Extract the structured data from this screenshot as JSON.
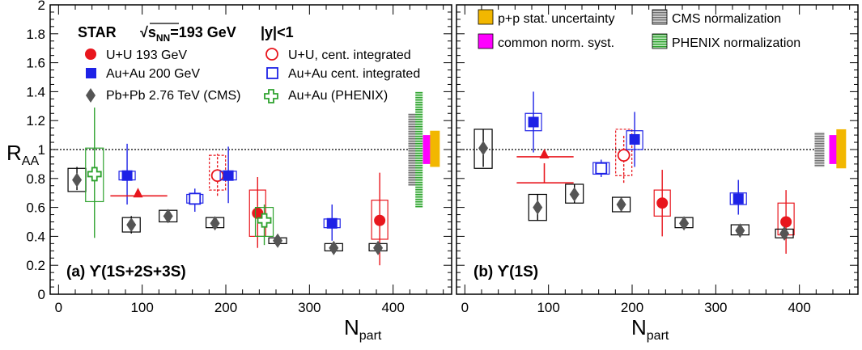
{
  "figure": {
    "y_axis_label": "R",
    "y_axis_label_sub": "AA",
    "x_axis_label": "N",
    "x_axis_label_sub": "part",
    "header_prefix": "STAR",
    "header_energy": "√s",
    "header_energy_sub": "NN",
    "header_energy_value": "=193 GeV",
    "header_rapidity": "|y|<1"
  },
  "colors": {
    "red": "#e8161d",
    "blue": "#1e22e6",
    "gray": "#555555",
    "green": "#2ea22e",
    "pp_stat": "#f2b700",
    "common_norm": "#ff00ff",
    "cms_norm": "#8c8c8c",
    "phenix_norm": "#3db33d"
  },
  "legend_a": [
    {
      "key": "uu",
      "label": "U+U 193 GeV"
    },
    {
      "key": "uu_int",
      "label": "U+U, cent. integrated"
    },
    {
      "key": "auau",
      "label": "Au+Au 200 GeV"
    },
    {
      "key": "auau_int",
      "label": "Au+Au cent. integrated"
    },
    {
      "key": "pbpb",
      "label": "Pb+Pb 2.76 TeV (CMS)"
    },
    {
      "key": "phenix",
      "label": "Au+Au (PHENIX)"
    }
  ],
  "legend_b": [
    {
      "key": "pp_stat",
      "label": "p+p stat. uncertainty"
    },
    {
      "key": "cms_norm",
      "label": "CMS normalization"
    },
    {
      "key": "common_norm",
      "label": "common norm. syst."
    },
    {
      "key": "phenix_norm",
      "label": "PHENIX normalization"
    }
  ],
  "chart_data": [
    {
      "type": "scatter",
      "panel_label": "(a) ϒ(1S+2S+3S)",
      "xlabel": "N_part",
      "ylabel": "R_AA",
      "xlim": [
        -10,
        470
      ],
      "ylim": [
        0,
        2
      ],
      "x_ticks": [
        0,
        100,
        200,
        300,
        400
      ],
      "y_ticks": [
        0,
        0.2,
        0.4,
        0.6,
        0.8,
        1,
        1.2,
        1.4,
        1.6,
        1.8,
        2
      ],
      "reference_line": 1,
      "series": [
        {
          "name": "U+U 193 GeV",
          "key": "uu",
          "points": [
            {
              "x": 238,
              "y": 0.56,
              "yerr": [
                0.32,
                0.81
              ],
              "sys": [
                0.4,
                0.72
              ]
            },
            {
              "x": 384,
              "y": 0.51,
              "yerr": [
                0.2,
                0.84
              ],
              "sys": [
                0.38,
                0.65
              ]
            }
          ]
        },
        {
          "name": "U+U, cent. integrated",
          "key": "uu_int",
          "points": [
            {
              "x": 190,
              "y": 0.82,
              "yerr": [
                0.68,
                0.97
              ],
              "sys": [
                0.72,
                0.96
              ]
            }
          ]
        },
        {
          "name": "Au+Au 200 GeV",
          "key": "auau",
          "points": [
            {
              "x": 82,
              "y": 0.82,
              "yerr": [
                0.62,
                1.04
              ],
              "sys": [
                0.79,
                0.85
              ]
            },
            {
              "x": 203,
              "y": 0.82,
              "yerr": [
                0.63,
                1.02
              ],
              "sys": [
                0.79,
                0.85
              ]
            },
            {
              "x": 327,
              "y": 0.49,
              "yerr": [
                0.37,
                0.62
              ],
              "sys": [
                0.46,
                0.52
              ]
            }
          ]
        },
        {
          "name": "Au+Au cent. integrated",
          "key": "auau_int",
          "points": [
            {
              "x": 163,
              "y": 0.66,
              "yerr": [
                0.57,
                0.73
              ],
              "sys": [
                0.63,
                0.69
              ]
            }
          ]
        },
        {
          "name": "Pb+Pb 2.76 TeV (CMS)",
          "key": "pbpb",
          "points": [
            {
              "x": 22,
              "y": 0.79,
              "yerr": [
                0.72,
                0.88
              ],
              "sys": [
                0.71,
                0.87
              ]
            },
            {
              "x": 87,
              "y": 0.48,
              "yerr": [
                0.42,
                0.54
              ],
              "sys": [
                0.43,
                0.53
              ]
            },
            {
              "x": 131,
              "y": 0.54,
              "yerr": [
                0.5,
                0.58
              ],
              "sys": [
                0.5,
                0.58
              ]
            },
            {
              "x": 187,
              "y": 0.49,
              "yerr": [
                0.45,
                0.53
              ],
              "sys": [
                0.46,
                0.53
              ]
            },
            {
              "x": 262,
              "y": 0.37,
              "yerr": [
                0.34,
                0.4
              ],
              "sys": [
                0.35,
                0.39
              ]
            },
            {
              "x": 329,
              "y": 0.32,
              "yerr": [
                0.29,
                0.35
              ],
              "sys": [
                0.3,
                0.35
              ]
            },
            {
              "x": 382,
              "y": 0.32,
              "yerr": [
                0.29,
                0.35
              ],
              "sys": [
                0.3,
                0.35
              ]
            }
          ]
        },
        {
          "name": "Au+Au (PHENIX)",
          "key": "phenix",
          "points": [
            {
              "x": 43,
              "y": 0.83,
              "yerr": [
                0.39,
                1.29
              ],
              "sys": [
                0.64,
                1.01
              ]
            },
            {
              "x": 246,
              "y": 0.51,
              "yerr": [
                0.34,
                0.62
              ],
              "sys": [
                0.4,
                0.6
              ]
            }
          ]
        },
        {
          "name": "U+U upper limit",
          "key": "uu_limit",
          "points": [
            {
              "x": 95,
              "y": 0.68,
              "xerr": [
                62,
                130
              ]
            }
          ]
        }
      ],
      "norm_bands": [
        {
          "key": "cms_norm",
          "x": 424,
          "range": [
            0.75,
            1.25
          ]
        },
        {
          "key": "phenix_norm",
          "x": 431,
          "range": [
            0.6,
            1.4
          ]
        },
        {
          "key": "common_norm",
          "x": 440,
          "range": [
            0.9,
            1.1
          ]
        },
        {
          "key": "pp_stat",
          "x": 450,
          "range": [
            0.88,
            1.13
          ]
        }
      ]
    },
    {
      "type": "scatter",
      "panel_label": "(b) ϒ(1S)",
      "xlabel": "N_part",
      "ylabel": "R_AA",
      "xlim": [
        -10,
        470
      ],
      "ylim": [
        0,
        2
      ],
      "x_ticks": [
        0,
        100,
        200,
        300,
        400
      ],
      "reference_line": 1,
      "series": [
        {
          "name": "U+U 193 GeV",
          "key": "uu",
          "points": [
            {
              "x": 236,
              "y": 0.63,
              "yerr": [
                0.4,
                0.86
              ],
              "sys": [
                0.54,
                0.72
              ]
            },
            {
              "x": 384,
              "y": 0.5,
              "yerr": [
                0.28,
                0.72
              ],
              "sys": [
                0.41,
                0.63
              ]
            }
          ]
        },
        {
          "name": "U+U, cent. integrated",
          "key": "uu_int",
          "points": [
            {
              "x": 190,
              "y": 0.96,
              "yerr": [
                0.77,
                1.1
              ],
              "sys": [
                0.82,
                1.14
              ]
            }
          ]
        },
        {
          "name": "Au+Au 200 GeV",
          "key": "auau",
          "points": [
            {
              "x": 82,
              "y": 1.19,
              "yerr": [
                0.98,
                1.4
              ],
              "sys": [
                1.13,
                1.25
              ]
            },
            {
              "x": 203,
              "y": 1.07,
              "yerr": [
                0.88,
                1.26
              ],
              "sys": [
                1.0,
                1.13
              ]
            },
            {
              "x": 327,
              "y": 0.66,
              "yerr": [
                0.55,
                0.79
              ],
              "sys": [
                0.62,
                0.7
              ]
            }
          ]
        },
        {
          "name": "Au+Au cent. integrated",
          "key": "auau_int",
          "points": [
            {
              "x": 163,
              "y": 0.87,
              "yerr": [
                0.81,
                0.93
              ],
              "sys": [
                0.83,
                0.91
              ]
            }
          ]
        },
        {
          "name": "Pb+Pb 2.76 TeV (CMS)",
          "key": "pbpb",
          "points": [
            {
              "x": 22,
              "y": 1.01,
              "yerr": [
                0.88,
                1.14
              ],
              "sys": [
                0.87,
                1.14
              ]
            },
            {
              "x": 87,
              "y": 0.6,
              "yerr": [
                0.51,
                0.69
              ],
              "sys": [
                0.51,
                0.69
              ]
            },
            {
              "x": 131,
              "y": 0.69,
              "yerr": [
                0.63,
                0.76
              ],
              "sys": [
                0.63,
                0.76
              ]
            },
            {
              "x": 187,
              "y": 0.62,
              "yerr": [
                0.57,
                0.67
              ],
              "sys": [
                0.57,
                0.67
              ]
            },
            {
              "x": 262,
              "y": 0.49,
              "yerr": [
                0.46,
                0.53
              ],
              "sys": [
                0.46,
                0.53
              ]
            },
            {
              "x": 329,
              "y": 0.44,
              "yerr": [
                0.41,
                0.48
              ],
              "sys": [
                0.41,
                0.48
              ]
            },
            {
              "x": 382,
              "y": 0.42,
              "yerr": [
                0.39,
                0.45
              ],
              "sys": [
                0.39,
                0.45
              ]
            }
          ]
        },
        {
          "name": "U+U upper limit",
          "key": "uu_limit",
          "points": [
            {
              "x": 95,
              "y": 0.95,
              "xerr": [
                62,
                130
              ],
              "limit_y": 0.77
            }
          ]
        }
      ],
      "norm_bands": [
        {
          "key": "cms_norm",
          "x": 424,
          "range": [
            0.88,
            1.12
          ]
        },
        {
          "key": "common_norm",
          "x": 440,
          "range": [
            0.9,
            1.1
          ]
        },
        {
          "key": "pp_stat",
          "x": 450,
          "range": [
            0.87,
            1.14
          ]
        }
      ]
    }
  ]
}
